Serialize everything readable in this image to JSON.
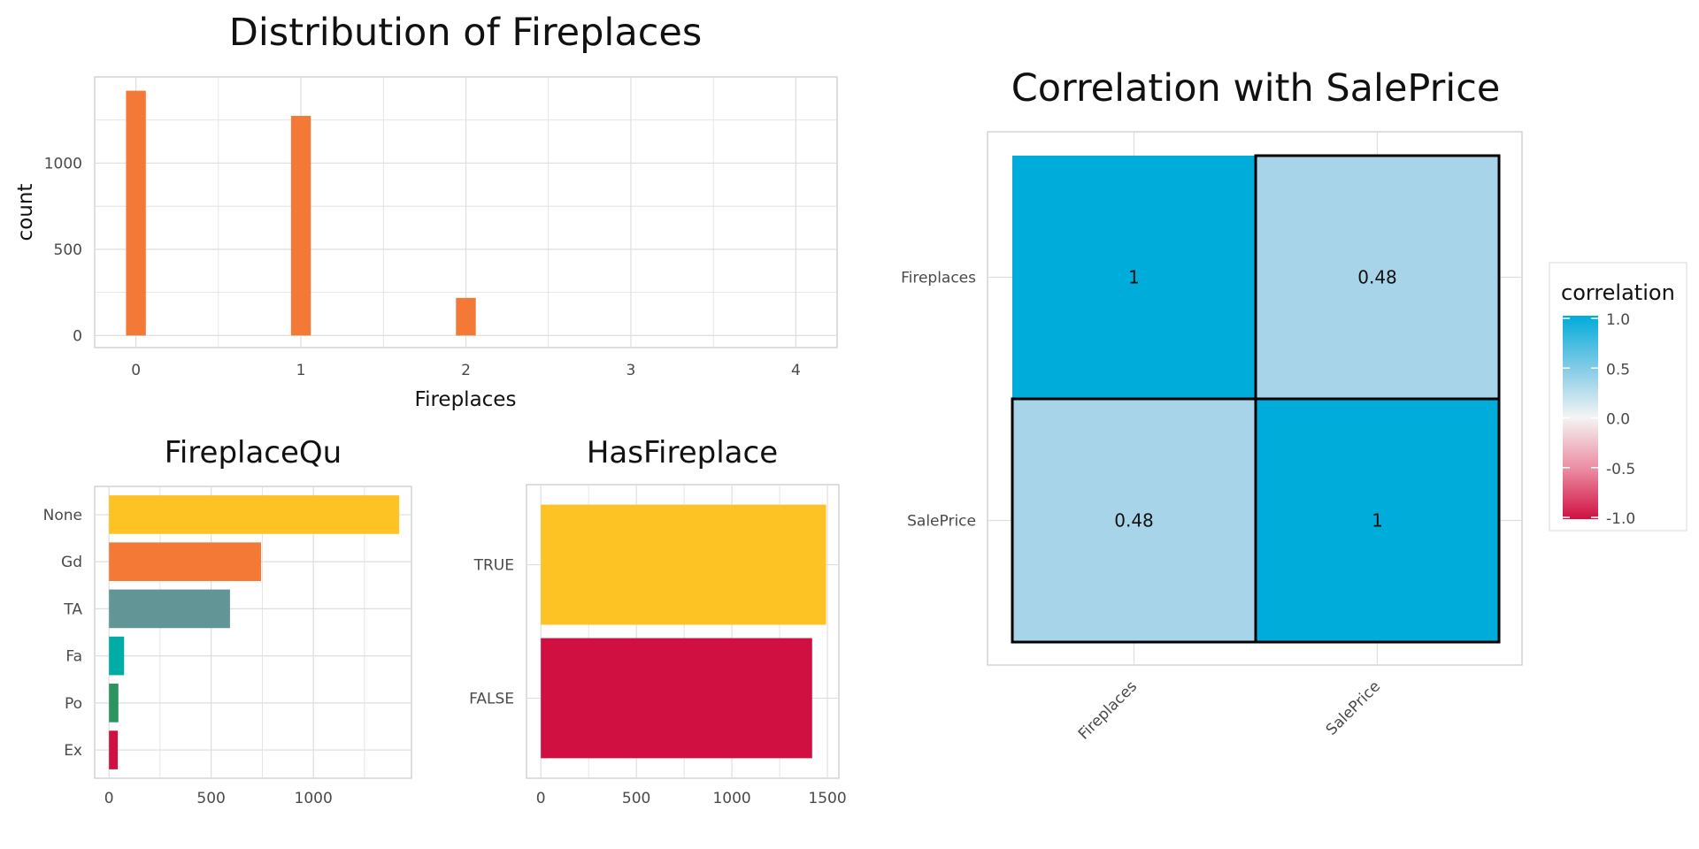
{
  "colors": {
    "orange": "#F47836",
    "yellow": "#FDC325",
    "teal_grey": "#629596",
    "teal": "#00ADA6",
    "green": "#2D9460",
    "red": "#D01041",
    "corr_high": "#00ACDA",
    "corr_mid": "#A8D4E9",
    "grid": "#DEDEDE",
    "panel_border": "#C8C8C8"
  },
  "chart_data": [
    {
      "type": "bar",
      "title": "Distribution of Fireplaces",
      "xlabel": "Fireplaces",
      "ylabel": "count",
      "categories": [
        0,
        1,
        2,
        3,
        4
      ],
      "values": [
        1420,
        1274,
        218,
        0,
        0
      ],
      "xlim": [
        -0.25,
        4.25
      ],
      "ylim": [
        -70,
        1500
      ],
      "xticks": [
        "0",
        "1",
        "2",
        "3",
        "4"
      ],
      "yticks": [
        0,
        500,
        1000
      ],
      "bar_color": "orange",
      "grid": true
    },
    {
      "type": "bar",
      "orientation": "horizontal",
      "title": "FireplaceQu",
      "categories": [
        "None",
        "Gd",
        "TA",
        "Fa",
        "Po",
        "Ex"
      ],
      "values": [
        1420,
        744,
        592,
        74,
        46,
        43
      ],
      "bar_colors": [
        "yellow",
        "orange",
        "teal_grey",
        "teal",
        "green",
        "red"
      ],
      "xlim": [
        -70,
        1480
      ],
      "xticks": [
        0,
        500,
        1000
      ],
      "grid": true
    },
    {
      "type": "bar",
      "orientation": "horizontal",
      "title": "HasFireplace",
      "categories": [
        "TRUE",
        "FALSE"
      ],
      "values": [
        1493,
        1420
      ],
      "bar_colors": [
        "yellow",
        "red"
      ],
      "xlim": [
        -75,
        1560
      ],
      "xticks": [
        0,
        500,
        1000,
        1500
      ],
      "grid": true
    },
    {
      "type": "heatmap",
      "title": "Correlation with SalePrice",
      "x_categories": [
        "Fireplaces",
        "SalePrice"
      ],
      "y_categories": [
        "Fireplaces",
        "SalePrice"
      ],
      "values": [
        [
          1,
          0.48
        ],
        [
          0.48,
          1
        ]
      ],
      "labels": [
        [
          "1",
          "0.48"
        ],
        [
          "0.48",
          "1"
        ]
      ],
      "legend": {
        "title": "correlation",
        "ticks": [
          "1.0",
          "0.5",
          "0.0",
          "-0.5",
          "-1.0"
        ],
        "placement": "right"
      }
    }
  ]
}
